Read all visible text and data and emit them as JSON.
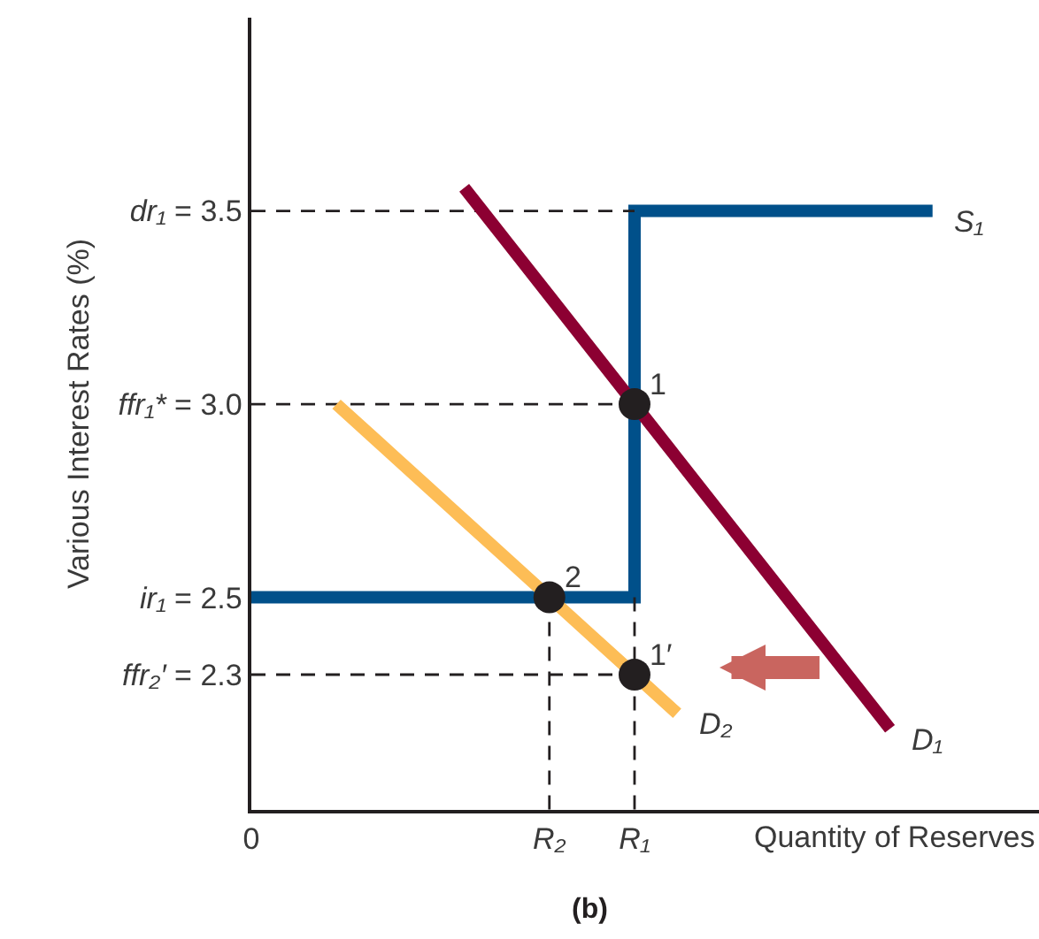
{
  "chart_data": {
    "type": "line",
    "ylabel": "Various Interest Rates (%)",
    "xlabel": "Quantity of Reserves",
    "categories": [
      "0",
      null,
      null,
      null,
      null,
      null,
      null,
      "R₂",
      null,
      "R₁",
      null,
      null,
      null,
      null,
      null,
      null,
      null,
      null,
      null
    ],
    "ylim": [
      1.95,
      4.0
    ],
    "yticks": [
      {
        "value": 2.3,
        "label": "ffr₂′ = 2.3"
      },
      {
        "value": 2.5,
        "label": "ir₁ = 2.5"
      },
      {
        "value": 3.0,
        "label": "ffr₁* = 3.0"
      },
      {
        "value": 3.5,
        "label": "dr₁ = 3.5"
      }
    ],
    "grid": false,
    "legend": false,
    "marker": "none",
    "line_style": "solid",
    "series": [
      {
        "type": "step",
        "name": "S₁",
        "color": "#00508a",
        "values": [
          2.5,
          2.5,
          2.5,
          2.5,
          2.5,
          2.5,
          2.5,
          2.5,
          2.5,
          3.5,
          3.5,
          3.5,
          3.5,
          3.5,
          3.5,
          3.5,
          3.5,
          null,
          null
        ]
      },
      {
        "type": "line",
        "line_style": "dashed",
        "color": "#231f20",
        "values": [
          3.5,
          3.5,
          3.5,
          3.5,
          3.5,
          3.5,
          3.5,
          3.5,
          3.5,
          3.5,
          null,
          null,
          null,
          null,
          null,
          null,
          null,
          null,
          null
        ]
      },
      {
        "type": "line",
        "line_style": "dashed",
        "color": "#231f20",
        "values": [
          3.0,
          3.0,
          3.0,
          3.0,
          3.0,
          3.0,
          3.0,
          3.0,
          3.0,
          3.0,
          null,
          null,
          null,
          null,
          null,
          null,
          null,
          null,
          null
        ]
      },
      {
        "type": "line",
        "line_style": "dashed",
        "color": "#231f20",
        "values": [
          2.3,
          2.3,
          2.3,
          2.3,
          2.3,
          2.3,
          2.3,
          2.3,
          2.3,
          2.3,
          null,
          null,
          null,
          null,
          null,
          null,
          null,
          null,
          null
        ]
      },
      {
        "type": "line",
        "line_style": "dashed",
        "color": "#231f20",
        "x": [
          "R₂",
          "R₂"
        ],
        "values": [
          2.5,
          1.95
        ]
      },
      {
        "type": "line",
        "line_style": "dashed",
        "color": "#231f20",
        "x": [
          "R₁",
          "R₁"
        ],
        "values": [
          2.5,
          1.95
        ]
      },
      {
        "name": "D₁",
        "color": "#8c0032",
        "values": [
          null,
          null,
          null,
          null,
          null,
          3.56,
          3.42,
          3.28,
          3.14,
          3.0,
          2.86,
          2.72,
          2.58,
          2.44,
          2.3,
          2.16,
          null,
          null,
          null
        ]
      },
      {
        "name": "D₂",
        "color": "#fdbd56",
        "values": [
          null,
          null,
          3.0,
          2.9,
          2.8,
          2.7,
          2.6,
          2.5,
          2.4,
          2.3,
          2.2,
          null,
          null,
          null,
          null,
          null,
          null,
          null,
          null
        ]
      },
      {
        "type": "scatter",
        "marker": "circle",
        "color": "#231f20",
        "x": [
          "R₁",
          "R₂",
          "R₁"
        ],
        "values": [
          3.0,
          2.5,
          2.3
        ]
      }
    ],
    "annotations": [
      {
        "text": "1",
        "x": "R₁",
        "y": 3.0
      },
      {
        "text": "2",
        "x": "R₂",
        "y": 2.5
      },
      {
        "text": "1′",
        "x": "R₁",
        "y": 2.3
      },
      "(b)"
    ]
  }
}
